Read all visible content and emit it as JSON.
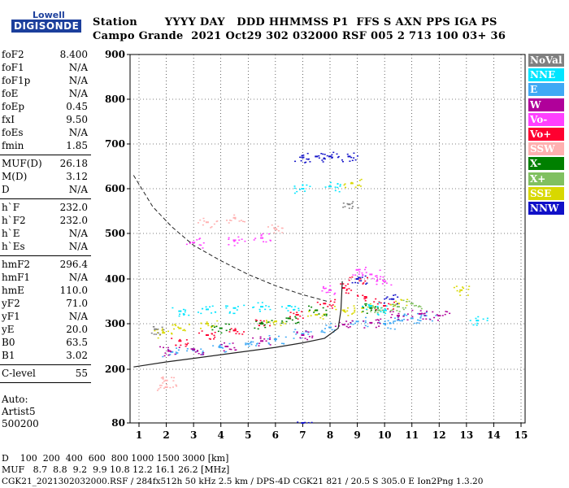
{
  "logo": {
    "line1": "Lowell",
    "line2": "DIGISONDE"
  },
  "header": {
    "labels": "Station       YYYY DAY   DDD HHMMSS P1  FFS S AXN PPS IGA PS",
    "values": "Campo Grande  2021 Oct29 302 032000 RSF 005 2 713 100 03+ 36"
  },
  "params": [
    [
      {
        "name": "foF2",
        "value": "8.400"
      },
      {
        "name": "foF1",
        "value": "N/A"
      },
      {
        "name": "foF1p",
        "value": "N/A"
      },
      {
        "name": "foE",
        "value": "N/A"
      },
      {
        "name": "foEp",
        "value": "0.45"
      },
      {
        "name": "fxI",
        "value": "9.50"
      },
      {
        "name": "foEs",
        "value": "N/A"
      },
      {
        "name": "fmin",
        "value": "1.85"
      }
    ],
    [
      {
        "name": "MUF(D)",
        "value": "26.18"
      },
      {
        "name": "M(D)",
        "value": "3.12"
      },
      {
        "name": "D",
        "value": "N/A"
      }
    ],
    [
      {
        "name": "h`F",
        "value": "232.0"
      },
      {
        "name": "h`F2",
        "value": "232.0"
      },
      {
        "name": "h`E",
        "value": "N/A"
      },
      {
        "name": "h`Es",
        "value": "N/A"
      }
    ],
    [
      {
        "name": "hmF2",
        "value": "296.4"
      },
      {
        "name": "hmF1",
        "value": "N/A"
      },
      {
        "name": "hmE",
        "value": "110.0"
      },
      {
        "name": "yF2",
        "value": "71.0"
      },
      {
        "name": "yF1",
        "value": "N/A"
      },
      {
        "name": "yE",
        "value": "20.0"
      },
      {
        "name": "B0",
        "value": "63.5"
      },
      {
        "name": "B1",
        "value": "3.02"
      }
    ],
    [
      {
        "name": "C-level",
        "value": "55"
      }
    ]
  ],
  "auto": {
    "line1": "Auto:",
    "line2": "Artist5",
    "line3": "500200"
  },
  "legend": [
    {
      "label": "NoVal",
      "color": "#808080"
    },
    {
      "label": "NNE",
      "color": "#00e5ff"
    },
    {
      "label": "E",
      "color": "#3fa9f5"
    },
    {
      "label": "W",
      "color": "#b0009a"
    },
    {
      "label": "Vo-",
      "color": "#ff40ff"
    },
    {
      "label": "Vo+",
      "color": "#ff0030"
    },
    {
      "label": "SSW",
      "color": "#ffb0b0"
    },
    {
      "label": "X-",
      "color": "#008000"
    },
    {
      "label": "X+",
      "color": "#80c060"
    },
    {
      "label": "SSE",
      "color": "#d8d800"
    },
    {
      "label": "NNW",
      "color": "#1010c8"
    }
  ],
  "footer": {
    "line1": "D    100  200  400  600  800 1000 1500 3000 [km]",
    "line2": "MUF   8.7  8.8  9.2  9.9 10.8 12.2 16.1 26.2 [MHz]",
    "line3": "CGK21_2021302032000.RSF / 284fx512h 50 kHz 2.5 km / DPS-4D CGK21 821 / 20.5 S 305.0 E Ion2Png 1.3.20"
  },
  "chart_data": {
    "type": "scatter",
    "xlim": [
      0.8,
      15.2
    ],
    "ylim": [
      80,
      900
    ],
    "xticks": [
      1,
      2,
      3,
      4,
      5,
      6,
      7,
      8,
      9,
      10,
      11,
      12,
      13,
      14,
      15
    ],
    "yticks": [
      80,
      200,
      300,
      400,
      500,
      600,
      700,
      800,
      900
    ],
    "grid": true,
    "series": [
      {
        "name": "E",
        "color": "#3fa9f5",
        "points": [
          [
            2.2,
            238
          ],
          [
            3,
            242
          ],
          [
            4,
            248
          ],
          [
            5,
            256
          ],
          [
            6,
            266
          ],
          [
            7,
            278
          ],
          [
            8,
            292
          ],
          [
            9,
            305
          ],
          [
            10,
            300
          ],
          [
            10.5,
            308
          ],
          [
            11,
            312
          ],
          [
            11.5,
            318
          ]
        ]
      },
      {
        "name": "W",
        "color": "#b0009a",
        "points": [
          [
            2.1,
            240
          ],
          [
            3,
            244
          ],
          [
            4.2,
            250
          ],
          [
            5.5,
            262
          ],
          [
            7,
            275
          ],
          [
            8.5,
            298
          ],
          [
            9.5,
            302
          ],
          [
            10.5,
            318
          ],
          [
            11.3,
            322
          ],
          [
            12,
            318
          ]
        ]
      },
      {
        "name": "Vo+",
        "color": "#ff0030",
        "points": [
          [
            2.5,
            262
          ],
          [
            3.5,
            275
          ],
          [
            4.5,
            285
          ],
          [
            5.5,
            300
          ],
          [
            6.8,
            320
          ],
          [
            7.8,
            345
          ],
          [
            8.5,
            380
          ],
          [
            9,
            400
          ],
          [
            9.3,
            360
          ],
          [
            10,
            340
          ]
        ]
      },
      {
        "name": "Vo-",
        "color": "#ff40ff",
        "points": [
          [
            3,
            480
          ],
          [
            4.5,
            485
          ],
          [
            5.5,
            490
          ],
          [
            8,
            375
          ],
          [
            9,
            420
          ],
          [
            9.5,
            410
          ],
          [
            10,
            395
          ]
        ]
      },
      {
        "name": "SSE",
        "color": "#d8d800",
        "points": [
          [
            1.9,
            280
          ],
          [
            2.5,
            290
          ],
          [
            3.5,
            300
          ],
          [
            6,
            305
          ],
          [
            7.5,
            320
          ],
          [
            8.5,
            330
          ],
          [
            9.2,
            335
          ],
          [
            10.5,
            345
          ],
          [
            12.8,
            375
          ],
          [
            8.8,
            612
          ]
        ]
      },
      {
        "name": "NNE",
        "color": "#00e5ff",
        "points": [
          [
            2.5,
            328
          ],
          [
            3.5,
            332
          ],
          [
            4.5,
            335
          ],
          [
            5.5,
            338
          ],
          [
            6.5,
            340
          ],
          [
            7,
            600
          ],
          [
            8,
            605
          ],
          [
            9.5,
            340
          ],
          [
            10,
            330
          ],
          [
            13.4,
            307
          ]
        ]
      },
      {
        "name": "NNW",
        "color": "#1010c8",
        "points": [
          [
            7,
            670
          ],
          [
            7.5,
            672
          ],
          [
            8,
            672
          ],
          [
            8.7,
            672
          ],
          [
            9,
            400
          ],
          [
            10.3,
            355
          ],
          [
            7,
            80
          ]
        ]
      },
      {
        "name": "X-",
        "color": "#008000",
        "points": [
          [
            4,
            290
          ],
          [
            5.5,
            300
          ],
          [
            6.5,
            312
          ],
          [
            7.5,
            330
          ],
          [
            9.5,
            335
          ]
        ]
      },
      {
        "name": "X+",
        "color": "#80c060",
        "points": [
          [
            9.8,
            330
          ],
          [
            10.5,
            338
          ],
          [
            11,
            345
          ]
        ]
      },
      {
        "name": "SSW",
        "color": "#ffb0b0",
        "points": [
          [
            2,
            175
          ],
          [
            2,
            160
          ],
          [
            4.5,
            535
          ],
          [
            3.5,
            525
          ],
          [
            6,
            510
          ]
        ]
      },
      {
        "name": "NoVal",
        "color": "#808080",
        "points": [
          [
            1.6,
            288
          ],
          [
            8.7,
            565
          ]
        ]
      }
    ],
    "curves": {
      "dashed": [
        [
          0.8,
          630
        ],
        [
          1.5,
          560
        ],
        [
          2.2,
          515
        ],
        [
          3,
          474
        ],
        [
          4,
          440
        ],
        [
          5,
          410
        ],
        [
          6,
          385
        ],
        [
          7,
          365
        ],
        [
          7.9,
          350
        ]
      ],
      "solid": [
        [
          0.8,
          205
        ],
        [
          2,
          216
        ],
        [
          3,
          224
        ],
        [
          4,
          232
        ],
        [
          5,
          240
        ],
        [
          6,
          248
        ],
        [
          7,
          258
        ],
        [
          7.8,
          268
        ],
        [
          8.3,
          290
        ],
        [
          8.4,
          330
        ],
        [
          8.45,
          395
        ]
      ]
    }
  }
}
